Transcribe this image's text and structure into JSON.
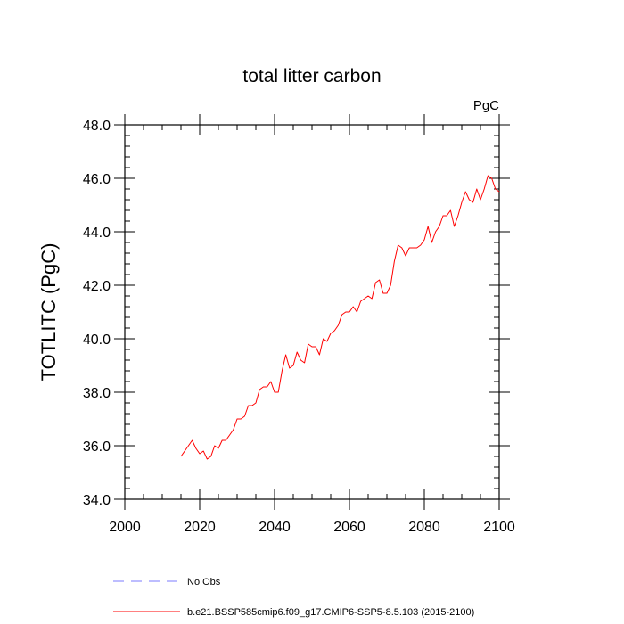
{
  "chart_data": {
    "type": "line",
    "title": "total litter carbon",
    "units_label": "PgC",
    "xlabel": "",
    "ylabel": "TOTLITC  (PgC)",
    "xlim": [
      2000,
      2100
    ],
    "ylim": [
      34.0,
      48.0
    ],
    "x_ticks": [
      2000,
      2020,
      2040,
      2060,
      2080,
      2100
    ],
    "x_tick_labels": [
      "2000",
      "2020",
      "2040",
      "2060",
      "2080",
      "2100"
    ],
    "y_ticks": [
      34.0,
      36.0,
      38.0,
      40.0,
      42.0,
      44.0,
      46.0,
      48.0
    ],
    "y_tick_labels": [
      "34.0",
      "36.0",
      "38.0",
      "40.0",
      "42.0",
      "44.0",
      "46.0",
      "48.0"
    ],
    "grid": false,
    "legend_position": "bottom",
    "legend": [
      {
        "name": "No Obs",
        "color": "#7b7bff",
        "dash": true
      },
      {
        "name": "b.e21.BSSP585cmip6.f09_g17.CMIP6-SSP5-8.5.103 (2015-2100)",
        "color": "#ff0000",
        "dash": false
      }
    ],
    "series": [
      {
        "name": "b.e21.BSSP585cmip6.f09_g17.CMIP6-SSP5-8.5.103 (2015-2100)",
        "color": "#ff0000",
        "x": [
          2015,
          2016,
          2017,
          2018,
          2019,
          2020,
          2021,
          2022,
          2023,
          2024,
          2025,
          2026,
          2027,
          2028,
          2029,
          2030,
          2031,
          2032,
          2033,
          2034,
          2035,
          2036,
          2037,
          2038,
          2039,
          2040,
          2041,
          2042,
          2043,
          2044,
          2045,
          2046,
          2047,
          2048,
          2049,
          2050,
          2051,
          2052,
          2053,
          2054,
          2055,
          2056,
          2057,
          2058,
          2059,
          2060,
          2061,
          2062,
          2063,
          2064,
          2065,
          2066,
          2067,
          2068,
          2069,
          2070,
          2071,
          2072,
          2073,
          2074,
          2075,
          2076,
          2077,
          2078,
          2079,
          2080,
          2081,
          2082,
          2083,
          2084,
          2085,
          2086,
          2087,
          2088,
          2089,
          2090,
          2091,
          2092,
          2093,
          2094,
          2095,
          2096,
          2097,
          2098,
          2099,
          2100
        ],
        "y": [
          35.6,
          35.8,
          36.0,
          36.2,
          35.9,
          35.7,
          35.8,
          35.5,
          35.6,
          36.0,
          35.9,
          36.2,
          36.2,
          36.4,
          36.6,
          37.0,
          37.0,
          37.1,
          37.5,
          37.5,
          37.6,
          38.1,
          38.2,
          38.2,
          38.4,
          38.0,
          38.0,
          38.8,
          39.4,
          38.9,
          39.0,
          39.5,
          39.2,
          39.1,
          39.8,
          39.7,
          39.7,
          39.4,
          40.0,
          39.9,
          40.2,
          40.3,
          40.5,
          40.9,
          41.0,
          41.0,
          41.2,
          41.0,
          41.4,
          41.5,
          41.6,
          41.5,
          42.1,
          42.2,
          41.7,
          41.7,
          42.0,
          42.9,
          43.5,
          43.4,
          43.1,
          43.4,
          43.4,
          43.4,
          43.5,
          43.7,
          44.2,
          43.6,
          44.0,
          44.2,
          44.6,
          44.6,
          44.8,
          44.2,
          44.6,
          45.1,
          45.5,
          45.2,
          45.1,
          45.6,
          45.2,
          45.6,
          46.1,
          46.0,
          45.6,
          45.5
        ]
      }
    ]
  }
}
